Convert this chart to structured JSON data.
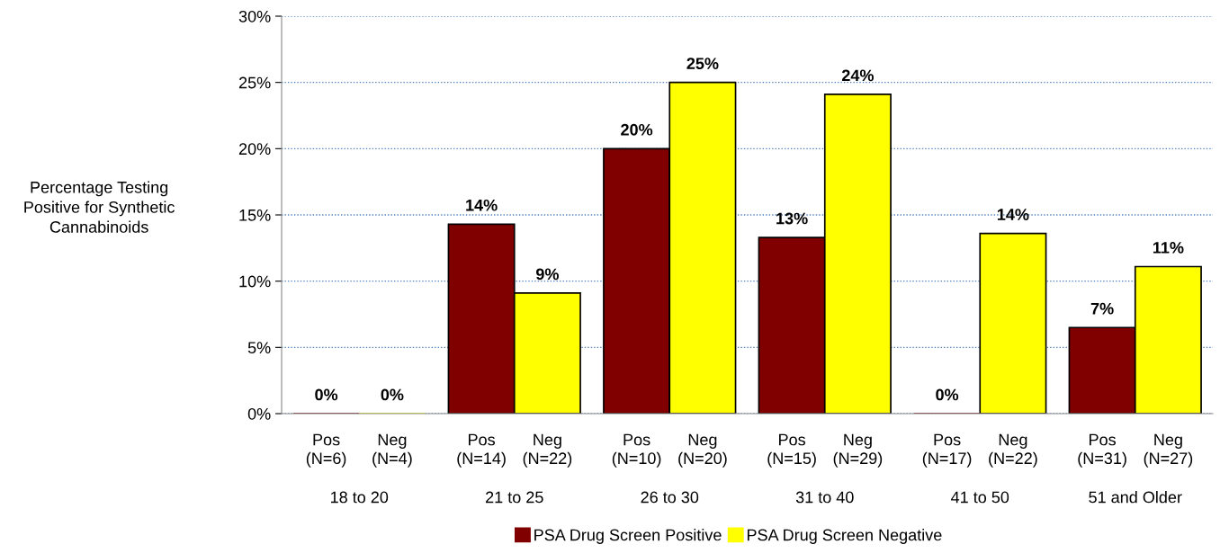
{
  "chart_data": {
    "type": "bar",
    "ylabel": "Percentage Testing\nPositive for Synthetic\nCannabinoids",
    "categories": [
      "18 to 20",
      "21 to 25",
      "26 to 30",
      "31 to 40",
      "41 to 50",
      "51 and Older"
    ],
    "series": [
      {
        "name": "PSA Drug Screen Positive",
        "color": "#800000",
        "values": [
          0,
          14.3,
          20,
          13.3,
          0,
          6.5
        ],
        "value_labels": [
          "0%",
          "14%",
          "20%",
          "13%",
          "0%",
          "7%"
        ]
      },
      {
        "name": "PSA Drug Screen Negative",
        "color": "#ffff00",
        "values": [
          0,
          9.1,
          25,
          24.1,
          13.6,
          11.1
        ],
        "value_labels": [
          "0%",
          "9%",
          "25%",
          "24%",
          "14%",
          "11%"
        ]
      }
    ],
    "annotations": [
      "Pos\n(N=6)",
      "Neg\n(N=4)",
      "Pos\n(N=14)",
      "Neg\n(N=22)",
      "Pos\n(N=10)",
      "Neg\n(N=20)",
      "Pos\n(N=15)",
      "Neg\n(N=29)",
      "Pos\n(N=17)",
      "Neg\n(N=22)",
      "Pos\n(N=31)",
      "Neg\n(N=27)"
    ],
    "ylim": [
      0,
      30
    ],
    "yticks": [
      {
        "value": 0,
        "label": "0%"
      },
      {
        "value": 5,
        "label": "5%"
      },
      {
        "value": 10,
        "label": "10%"
      },
      {
        "value": 15,
        "label": "15%"
      },
      {
        "value": 20,
        "label": "20%"
      },
      {
        "value": 25,
        "label": "25%"
      },
      {
        "value": 30,
        "label": "30%"
      }
    ],
    "grid": "y",
    "legend": "bottom"
  }
}
